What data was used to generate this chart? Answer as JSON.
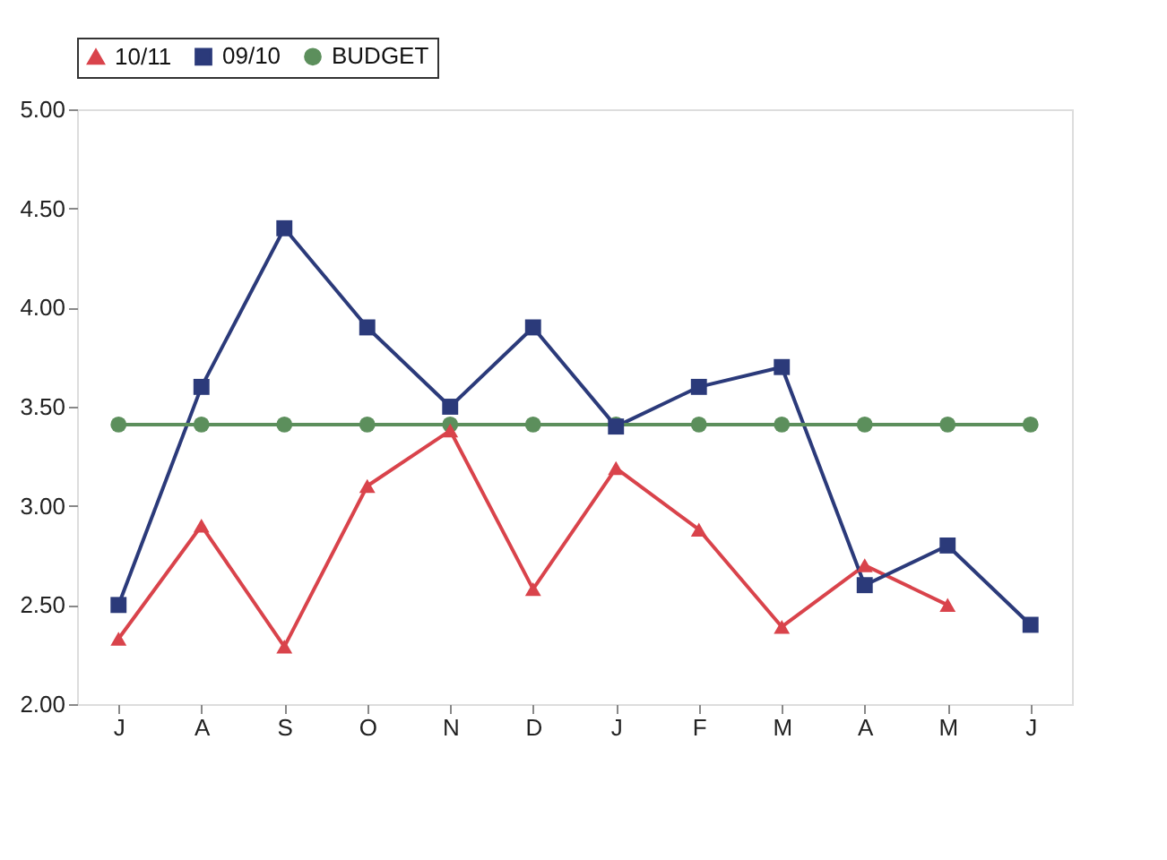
{
  "chart_data": {
    "type": "line",
    "categories": [
      "J",
      "A",
      "S",
      "O",
      "N",
      "D",
      "J",
      "F",
      "M",
      "A",
      "M",
      "J"
    ],
    "series": [
      {
        "name": "10/11",
        "color": "#d9434b",
        "marker": "triangle",
        "values": [
          2.33,
          2.9,
          2.29,
          3.1,
          3.38,
          2.58,
          3.19,
          2.88,
          2.39,
          2.7,
          2.5,
          null
        ]
      },
      {
        "name": "09/10",
        "color": "#2b3a7a",
        "marker": "square",
        "values": [
          2.5,
          3.6,
          4.4,
          3.9,
          3.5,
          3.9,
          3.4,
          3.6,
          3.7,
          2.6,
          2.8,
          2.4
        ]
      },
      {
        "name": "BUDGET",
        "color": "#5c8f5c",
        "marker": "circle",
        "values": [
          3.41,
          3.41,
          3.41,
          3.41,
          3.41,
          3.41,
          3.41,
          3.41,
          3.41,
          3.41,
          3.41,
          3.41
        ]
      }
    ],
    "ylim": [
      2.0,
      5.0
    ],
    "yticks": [
      {
        "value": 2.0,
        "label": "2.00"
      },
      {
        "value": 2.5,
        "label": "2.50"
      },
      {
        "value": 3.0,
        "label": "3.00"
      },
      {
        "value": 3.5,
        "label": "3.50"
      },
      {
        "value": 4.0,
        "label": "4.00"
      },
      {
        "value": 4.5,
        "label": "4.50"
      },
      {
        "value": 5.0,
        "label": "5.00"
      }
    ],
    "legend": "top",
    "grid": false,
    "line_style": "solid"
  }
}
